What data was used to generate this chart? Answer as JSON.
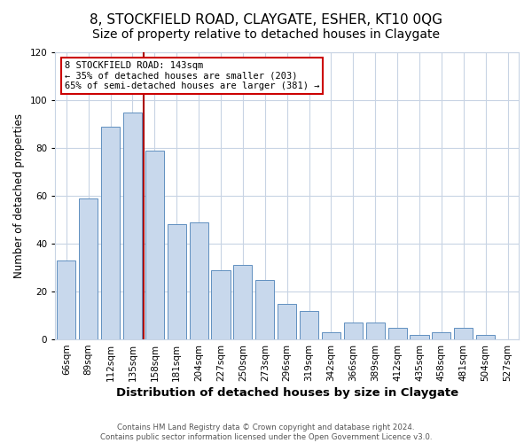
{
  "title": "8, STOCKFIELD ROAD, CLAYGATE, ESHER, KT10 0QG",
  "subtitle": "Size of property relative to detached houses in Claygate",
  "xlabel": "Distribution of detached houses by size in Claygate",
  "ylabel": "Number of detached properties",
  "bar_labels": [
    "66sqm",
    "89sqm",
    "112sqm",
    "135sqm",
    "158sqm",
    "181sqm",
    "204sqm",
    "227sqm",
    "250sqm",
    "273sqm",
    "296sqm",
    "319sqm",
    "342sqm",
    "366sqm",
    "389sqm",
    "412sqm",
    "435sqm",
    "458sqm",
    "481sqm",
    "504sqm",
    "527sqm"
  ],
  "bar_values": [
    33,
    59,
    89,
    95,
    79,
    48,
    49,
    29,
    31,
    25,
    15,
    12,
    3,
    7,
    7,
    5,
    2,
    3,
    5,
    2,
    0
  ],
  "bar_color": "#c8d8ec",
  "bar_edge_color": "#6090c0",
  "vline_index": 3,
  "vline_color": "#aa0000",
  "annotation_line1": "8 STOCKFIELD ROAD: 143sqm",
  "annotation_line2": "← 35% of detached houses are smaller (203)",
  "annotation_line3": "65% of semi-detached houses are larger (381) →",
  "annotation_fontsize": 7.5,
  "annotation_box_color": "#cc0000",
  "ylim": [
    0,
    120
  ],
  "yticks": [
    0,
    20,
    40,
    60,
    80,
    100,
    120
  ],
  "title_fontsize": 11,
  "subtitle_fontsize": 10,
  "xlabel_fontsize": 9.5,
  "ylabel_fontsize": 8.5,
  "tick_fontsize": 7.5,
  "footer_line1": "Contains HM Land Registry data © Crown copyright and database right 2024.",
  "footer_line2": "Contains public sector information licensed under the Open Government Licence v3.0.",
  "bg_color": "#ffffff",
  "grid_color": "#c8d4e4"
}
